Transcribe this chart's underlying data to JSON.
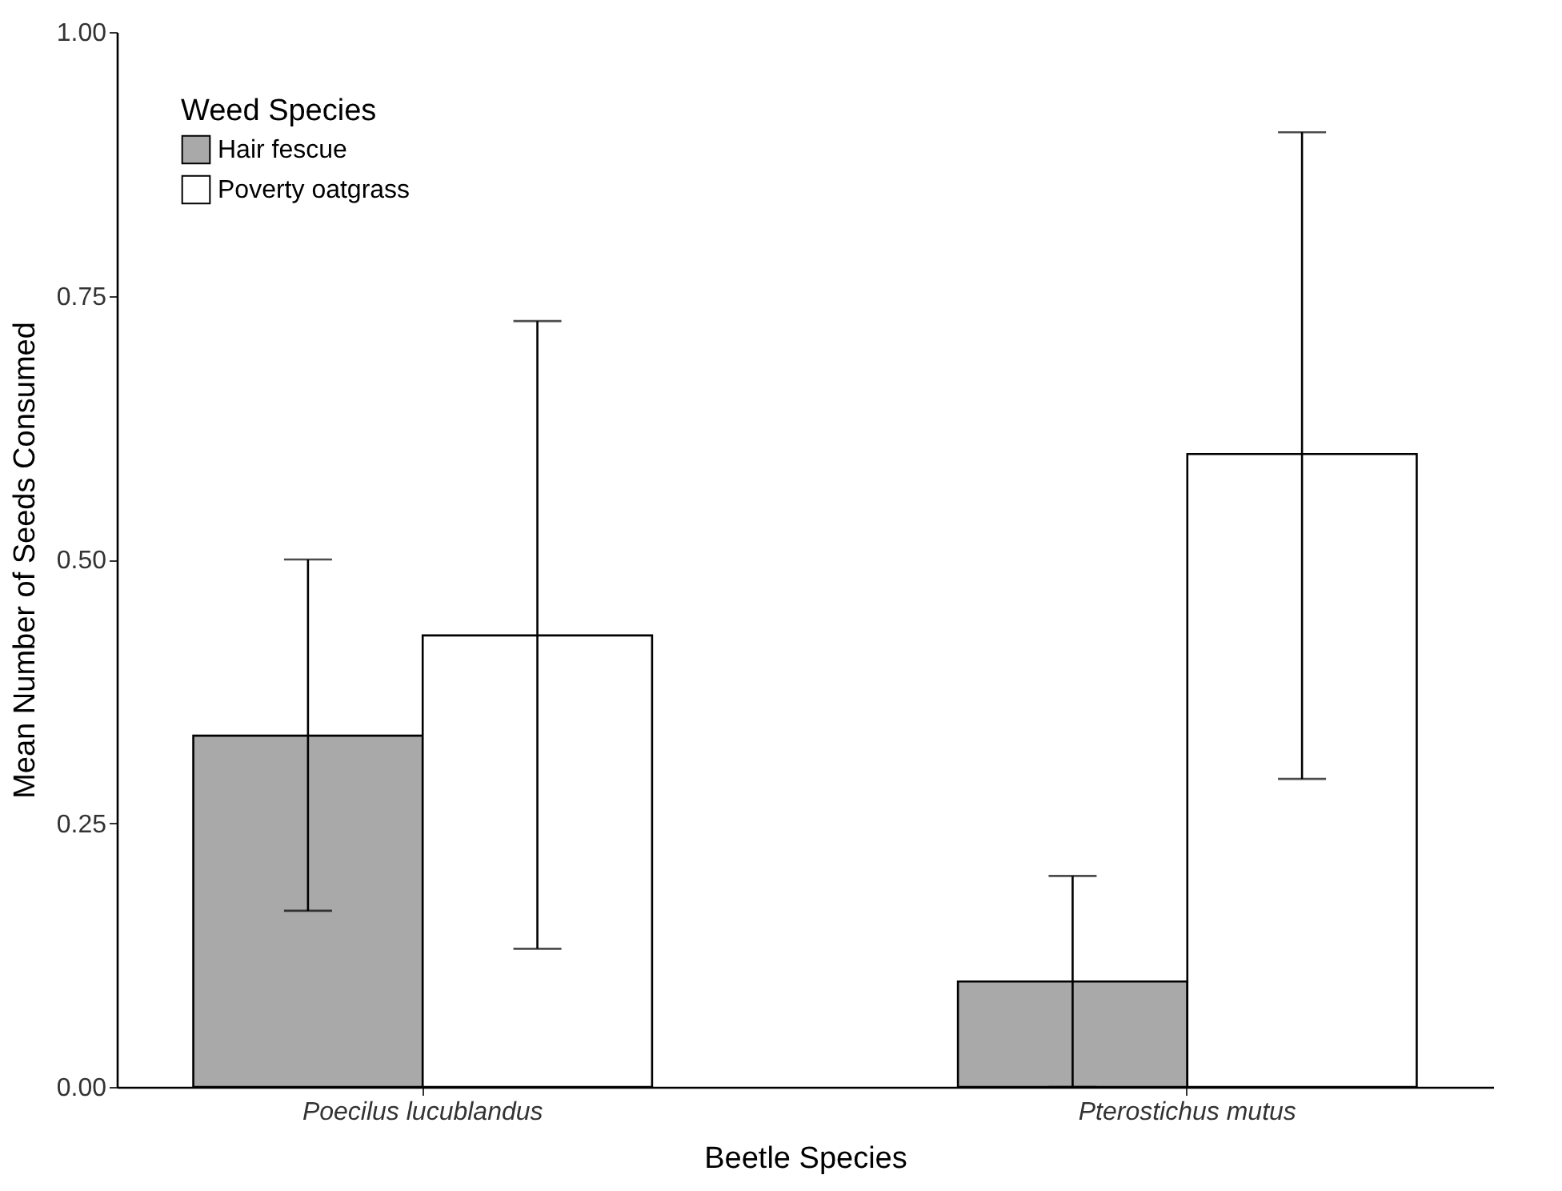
{
  "chart_data": {
    "type": "bar",
    "xlabel": "Beetle Species",
    "ylabel": "Mean Number of Seeds Consumed",
    "legend_title": "Weed Species",
    "categories": [
      "Poecilus lucublandus",
      "Pterostichus mutus"
    ],
    "series": [
      {
        "name": "Hair fescue",
        "color": "#a9a9a9",
        "values": [
          0.333,
          0.1
        ],
        "errors": [
          [
            0.167,
            0.5
          ],
          [
            0,
            0.2
          ]
        ]
      },
      {
        "name": "Poverty oatgrass",
        "color": "#ffffff",
        "values": [
          0.428,
          0.6
        ],
        "errors": [
          [
            0.131,
            0.726
          ],
          [
            0.292,
            0.905
          ]
        ]
      }
    ],
    "ylim": [
      0,
      1
    ],
    "yticks": [
      {
        "value": 0,
        "label": "0.00"
      },
      {
        "value": 0.25,
        "label": "0.25"
      },
      {
        "value": 0.5,
        "label": "0.50"
      },
      {
        "value": 0.75,
        "label": "0.75"
      },
      {
        "value": 1,
        "label": "1.00"
      }
    ],
    "grid": false,
    "legend": "top left"
  }
}
